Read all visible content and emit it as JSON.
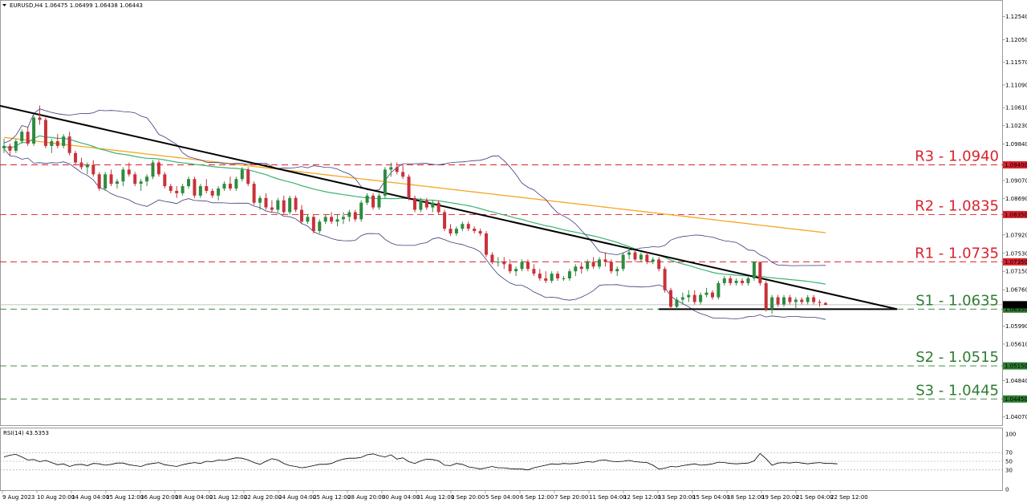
{
  "header": {
    "symbol_info": "EURUSD,H4  1.06475 1.06499 1.06438 1.06443"
  },
  "rsi": {
    "label": "RSI(14) 43.5353",
    "levels": [
      70,
      50,
      30
    ],
    "axis_ticks": [
      "100",
      "70",
      "50",
      "30",
      "0"
    ]
  },
  "x_axis": {
    "labels": [
      "9 Aug 2023",
      "10 Aug 20:00",
      "14 Aug 04:00",
      "15 Aug 12:00",
      "16 Aug 20:00",
      "18 Aug 04:00",
      "21 Aug 12:00",
      "22 Aug 20:00",
      "24 Aug 04:00",
      "25 Aug 12:00",
      "28 Aug 20:00",
      "30 Aug 04:00",
      "31 Aug 12:00",
      "1 Sep 20:00",
      "5 Sep 04:00",
      "6 Sep 12:00",
      "7 Sep 20:00",
      "11 Sep 04:00",
      "12 Sep 12:00",
      "13 Sep 20:00",
      "15 Sep 04:00",
      "18 Sep 12:00",
      "19 Sep 20:00",
      "21 Sep 04:00",
      "22 Sep 12:00"
    ]
  },
  "levels": [
    {
      "label": "R3 - 1.0940",
      "price": 1.094,
      "tag": "1.09400",
      "color": "#d9232d"
    },
    {
      "label": "R2 - 1.0835",
      "price": 1.0835,
      "tag": "1.08350",
      "color": "#d9232d"
    },
    {
      "label": "R1 - 1.0735",
      "price": 1.0735,
      "tag": "1.07350",
      "color": "#d9232d"
    },
    {
      "label": "S1 - 1.0635",
      "price": 1.0635,
      "tag": "1.06350",
      "color": "#2e7d32"
    },
    {
      "label": "S2 - 1.0515",
      "price": 1.0515,
      "tag": "1.05150",
      "color": "#2e7d32"
    },
    {
      "label": "S3 - 1.0445",
      "price": 1.0445,
      "tag": "1.04450",
      "color": "#2e7d32"
    }
  ],
  "current_price": {
    "tag": "1.06443",
    "price": 1.06443
  },
  "colors": {
    "bull": "#2e8b3e",
    "bear": "#c8323a",
    "ma_green": "#3cb371",
    "ma_orange": "#f5a623",
    "bollinger": "#3b3b7a",
    "trend": "#000000"
  },
  "chart_data": {
    "type": "candlestick",
    "y_axis_ticks": [
      "1.12540",
      "1.12050",
      "1.11570",
      "1.11090",
      "1.10610",
      "1.10230",
      "1.09840",
      "1.09400",
      "1.09070",
      "1.08690",
      "1.08350",
      "1.07920",
      "1.07530",
      "1.07150",
      "1.06760",
      "1.06441",
      "1.06350",
      "1.05990",
      "1.05610",
      "1.05150",
      "1.04840",
      "1.04450",
      "1.04070"
    ],
    "ylim": [
      1.0393,
      1.1275
    ],
    "trendline": [
      [
        0,
        1.1065
      ],
      [
        150,
        1.0635
      ]
    ],
    "support_line": {
      "from": 110,
      "to": 150,
      "price": 1.0635
    },
    "series": [
      {
        "name": "RSI(14)",
        "values": [
          60,
          64,
          66,
          60,
          53,
          54,
          49,
          52,
          47,
          42,
          44,
          38,
          42,
          43,
          40,
          45,
          44,
          41,
          43,
          46,
          46,
          42,
          40,
          38,
          43,
          45,
          47,
          42,
          40,
          38,
          42,
          45,
          47,
          45,
          50,
          49,
          53,
          52,
          55,
          58,
          57,
          53,
          47,
          43,
          50,
          56,
          53,
          45,
          40,
          38,
          35,
          37,
          40,
          43,
          43,
          45,
          51,
          55,
          57,
          57,
          59,
          65,
          67,
          63,
          60,
          65,
          55,
          58,
          49,
          45,
          51,
          55,
          54,
          51,
          41,
          40,
          45,
          43,
          37,
          35,
          32,
          35,
          38,
          35,
          35,
          33,
          32,
          32,
          30,
          35,
          38,
          41,
          44,
          43,
          45,
          44,
          45,
          47,
          49,
          48,
          52,
          53,
          50,
          49,
          50,
          52,
          49,
          48,
          47,
          41,
          32,
          34,
          38,
          37,
          40,
          42,
          44,
          41,
          42,
          44,
          48,
          47,
          45,
          44,
          45,
          46,
          51,
          68,
          56,
          41,
          46,
          47,
          46,
          48,
          46,
          44,
          46,
          47,
          45,
          45,
          44
        ]
      }
    ],
    "candles": [
      [
        1.0975,
        1.0995,
        1.0965,
        1.098
      ],
      [
        1.098,
        1.0985,
        1.096,
        1.097
      ],
      [
        1.097,
        1.0995,
        1.0965,
        1.099
      ],
      [
        1.099,
        1.1015,
        1.0985,
        1.101
      ],
      [
        1.101,
        1.102,
        1.098,
        1.0985
      ],
      [
        1.0985,
        1.1045,
        1.098,
        1.104
      ],
      [
        1.104,
        1.1065,
        1.1025,
        1.1035
      ],
      [
        1.1035,
        1.104,
        1.0975,
        1.098
      ],
      [
        1.098,
        1.0995,
        1.0965,
        1.099
      ],
      [
        1.099,
        1.1005,
        1.0975,
        1.098
      ],
      [
        1.098,
        1.1005,
        1.0975,
        1.1
      ],
      [
        1.1,
        1.101,
        1.096,
        1.0965
      ],
      [
        1.0965,
        1.097,
        1.094,
        1.0945
      ],
      [
        1.0945,
        1.0955,
        1.093,
        1.0935
      ],
      [
        1.0935,
        1.0945,
        1.092,
        1.094
      ],
      [
        1.094,
        1.095,
        1.0915,
        1.092
      ],
      [
        1.092,
        1.0925,
        1.0885,
        1.089
      ],
      [
        1.089,
        1.0925,
        1.0885,
        1.092
      ],
      [
        1.092,
        1.093,
        1.0895,
        1.09
      ],
      [
        1.09,
        1.091,
        1.089,
        1.0905
      ],
      [
        1.0905,
        1.0935,
        1.0895,
        1.093
      ],
      [
        1.093,
        1.0945,
        1.0915,
        1.092
      ],
      [
        1.092,
        1.0925,
        1.0895,
        1.09
      ],
      [
        1.09,
        1.091,
        1.0885,
        1.0905
      ],
      [
        1.0905,
        1.092,
        1.0895,
        1.0915
      ],
      [
        1.0915,
        1.095,
        1.091,
        1.0945
      ],
      [
        1.0945,
        1.095,
        1.0915,
        1.092
      ],
      [
        1.092,
        1.0925,
        1.089,
        1.0895
      ],
      [
        1.0895,
        1.09,
        1.088,
        1.0885
      ],
      [
        1.0885,
        1.0895,
        1.087,
        1.088
      ],
      [
        1.088,
        1.09,
        1.0875,
        1.0895
      ],
      [
        1.0895,
        1.0915,
        1.089,
        1.091
      ],
      [
        1.091,
        1.0915,
        1.087,
        1.0875
      ],
      [
        1.0875,
        1.09,
        1.087,
        1.0895
      ],
      [
        1.0895,
        1.091,
        1.088,
        1.0885
      ],
      [
        1.0885,
        1.089,
        1.087,
        1.0875
      ],
      [
        1.0875,
        1.0895,
        1.0865,
        1.089
      ],
      [
        1.089,
        1.0905,
        1.0885,
        1.09
      ],
      [
        1.09,
        1.0915,
        1.0885,
        1.089
      ],
      [
        1.089,
        1.0915,
        1.0885,
        1.091
      ],
      [
        1.091,
        1.0935,
        1.0905,
        1.093
      ],
      [
        1.093,
        1.0935,
        1.0895,
        1.09
      ],
      [
        1.09,
        1.0905,
        1.0855,
        1.086
      ],
      [
        1.086,
        1.0875,
        1.0845,
        1.087
      ],
      [
        1.087,
        1.088,
        1.0845,
        1.085
      ],
      [
        1.085,
        1.0865,
        1.084,
        1.0845
      ],
      [
        1.0845,
        1.087,
        1.084,
        1.0865
      ],
      [
        1.0865,
        1.0875,
        1.0835,
        1.084
      ],
      [
        1.084,
        1.0875,
        1.0835,
        1.087
      ],
      [
        1.087,
        1.0875,
        1.084,
        1.0845
      ],
      [
        1.0845,
        1.0855,
        1.0815,
        1.082
      ],
      [
        1.082,
        1.0835,
        1.0815,
        1.083
      ],
      [
        1.083,
        1.0835,
        1.0795,
        1.08
      ],
      [
        1.08,
        1.0825,
        1.0795,
        1.082
      ],
      [
        1.082,
        1.0835,
        1.0815,
        1.083
      ],
      [
        1.083,
        1.084,
        1.0815,
        1.082
      ],
      [
        1.082,
        1.0835,
        1.081,
        1.0825
      ],
      [
        1.0825,
        1.084,
        1.0815,
        1.083
      ],
      [
        1.083,
        1.0845,
        1.082,
        1.084
      ],
      [
        1.084,
        1.0845,
        1.082,
        1.0825
      ],
      [
        1.0825,
        1.0865,
        1.082,
        1.086
      ],
      [
        1.086,
        1.088,
        1.0855,
        1.0875
      ],
      [
        1.0875,
        1.088,
        1.0845,
        1.085
      ],
      [
        1.085,
        1.088,
        1.0845,
        1.0875
      ],
      [
        1.0875,
        1.0935,
        1.087,
        1.093
      ],
      [
        1.093,
        1.0945,
        1.0915,
        1.0935
      ],
      [
        1.0935,
        1.0945,
        1.092,
        1.0925
      ],
      [
        1.0925,
        1.094,
        1.091,
        1.0915
      ],
      [
        1.0915,
        1.092,
        1.0865,
        1.087
      ],
      [
        1.087,
        1.0875,
        1.084,
        1.0845
      ],
      [
        1.0845,
        1.087,
        1.084,
        1.0865
      ],
      [
        1.0865,
        1.087,
        1.0845,
        1.085
      ],
      [
        1.085,
        1.0865,
        1.084,
        1.086
      ],
      [
        1.086,
        1.0865,
        1.0835,
        1.084
      ],
      [
        1.084,
        1.0845,
        1.08,
        1.0805
      ],
      [
        1.0805,
        1.0815,
        1.079,
        1.0795
      ],
      [
        1.0795,
        1.081,
        1.079,
        1.0805
      ],
      [
        1.0805,
        1.082,
        1.08,
        1.0815
      ],
      [
        1.0815,
        1.082,
        1.08,
        1.0805
      ],
      [
        1.0805,
        1.081,
        1.0795,
        1.08
      ],
      [
        1.08,
        1.0805,
        1.079,
        1.0795
      ],
      [
        1.0795,
        1.08,
        1.0745,
        1.075
      ],
      [
        1.075,
        1.0755,
        1.073,
        1.0735
      ],
      [
        1.0735,
        1.0745,
        1.0725,
        1.0735
      ],
      [
        1.0735,
        1.0745,
        1.072,
        1.073
      ],
      [
        1.073,
        1.074,
        1.071,
        1.0715
      ],
      [
        1.0715,
        1.0725,
        1.0705,
        1.072
      ],
      [
        1.072,
        1.074,
        1.0715,
        1.0735
      ],
      [
        1.0735,
        1.074,
        1.0715,
        1.072
      ],
      [
        1.072,
        1.073,
        1.0705,
        1.071
      ],
      [
        1.071,
        1.072,
        1.0695,
        1.07
      ],
      [
        1.07,
        1.0715,
        1.069,
        1.0695
      ],
      [
        1.0695,
        1.0715,
        1.069,
        1.071
      ],
      [
        1.071,
        1.0715,
        1.0695,
        1.07
      ],
      [
        1.07,
        1.0705,
        1.0695,
        1.07
      ],
      [
        1.07,
        1.072,
        1.0695,
        1.0715
      ],
      [
        1.0715,
        1.073,
        1.0705,
        1.0725
      ],
      [
        1.0725,
        1.0735,
        1.071,
        1.072
      ],
      [
        1.072,
        1.074,
        1.0715,
        1.0735
      ],
      [
        1.0735,
        1.0745,
        1.072,
        1.0725
      ],
      [
        1.0725,
        1.0745,
        1.072,
        1.074
      ],
      [
        1.074,
        1.0755,
        1.0725,
        1.0735
      ],
      [
        1.0735,
        1.074,
        1.071,
        1.0715
      ],
      [
        1.0715,
        1.0725,
        1.0705,
        1.072
      ],
      [
        1.072,
        1.0755,
        1.0715,
        1.075
      ],
      [
        1.075,
        1.0765,
        1.074,
        1.0755
      ],
      [
        1.0755,
        1.076,
        1.0735,
        1.074
      ],
      [
        1.074,
        1.0755,
        1.0735,
        1.075
      ],
      [
        1.075,
        1.0755,
        1.073,
        1.0735
      ],
      [
        1.0735,
        1.0745,
        1.073,
        1.074
      ],
      [
        1.074,
        1.0745,
        1.0715,
        1.072
      ],
      [
        1.072,
        1.0725,
        1.067,
        1.0675
      ],
      [
        1.0675,
        1.068,
        1.0635,
        1.064
      ],
      [
        1.064,
        1.066,
        1.0635,
        1.0655
      ],
      [
        1.0655,
        1.067,
        1.0645,
        1.066
      ],
      [
        1.066,
        1.0675,
        1.065,
        1.0665
      ],
      [
        1.0665,
        1.0675,
        1.0645,
        1.065
      ],
      [
        1.065,
        1.067,
        1.0645,
        1.0665
      ],
      [
        1.0665,
        1.068,
        1.066,
        1.067
      ],
      [
        1.067,
        1.0675,
        1.0655,
        1.066
      ],
      [
        1.066,
        1.0695,
        1.0655,
        1.069
      ],
      [
        1.069,
        1.0705,
        1.0685,
        1.07
      ],
      [
        1.07,
        1.0705,
        1.0685,
        1.069
      ],
      [
        1.069,
        1.07,
        1.0685,
        1.0695
      ],
      [
        1.0695,
        1.07,
        1.0685,
        1.069
      ],
      [
        1.069,
        1.0705,
        1.0685,
        1.07
      ],
      [
        1.07,
        1.0735,
        1.0695,
        1.0735
      ],
      [
        1.0735,
        1.0735,
        1.0685,
        1.069
      ],
      [
        1.069,
        1.0695,
        1.063,
        1.0635
      ],
      [
        1.0635,
        1.0665,
        1.0625,
        1.066
      ],
      [
        1.066,
        1.0665,
        1.064,
        1.0645
      ],
      [
        1.0645,
        1.0665,
        1.064,
        1.066
      ],
      [
        1.066,
        1.0665,
        1.0645,
        1.065
      ],
      [
        1.065,
        1.066,
        1.0635,
        1.0655
      ],
      [
        1.0655,
        1.066,
        1.0645,
        1.065
      ],
      [
        1.065,
        1.0665,
        1.0645,
        1.066
      ],
      [
        1.066,
        1.0665,
        1.0645,
        1.065
      ],
      [
        1.065,
        1.0655,
        1.064,
        1.0648
      ],
      [
        1.0648,
        1.065,
        1.0643,
        1.0644
      ]
    ]
  }
}
